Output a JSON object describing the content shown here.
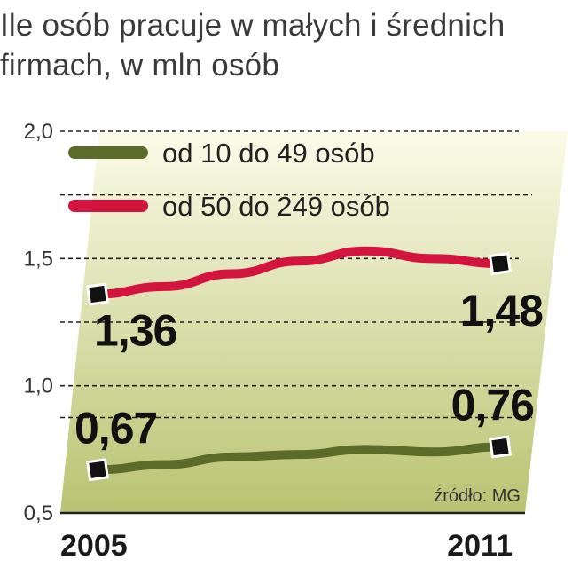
{
  "chart_data": {
    "type": "line",
    "title": "Ile osób pracuje w małych i średnich firmach, w mln osób",
    "x": [
      "2005",
      "",
      "",
      "",
      "",
      "",
      "2011"
    ],
    "ylim": [
      0.5,
      2.0
    ],
    "yticks": [
      "2,0",
      "1,5",
      "1,0",
      "0,5"
    ],
    "ytick_values": [
      2.0,
      1.5,
      1.0,
      0.5
    ],
    "xtick_labels": [
      "2005",
      "2011"
    ],
    "grid": true,
    "legend_position": "top-left",
    "series": [
      {
        "name": "od 10 do 49 osób",
        "color": "#5b6b2a",
        "values": [
          0.67,
          0.69,
          0.72,
          0.73,
          0.75,
          0.74,
          0.76
        ],
        "start_label": "0,67",
        "end_label": "0,76"
      },
      {
        "name": "od 50 do 249 osób",
        "color": "#d3143f",
        "values": [
          1.36,
          1.39,
          1.44,
          1.49,
          1.53,
          1.5,
          1.48
        ],
        "start_label": "1,36",
        "end_label": "1,48"
      }
    ],
    "source": "źródło: MG",
    "background_gradient": [
      "#fbfbe8",
      "#b9c371"
    ]
  }
}
